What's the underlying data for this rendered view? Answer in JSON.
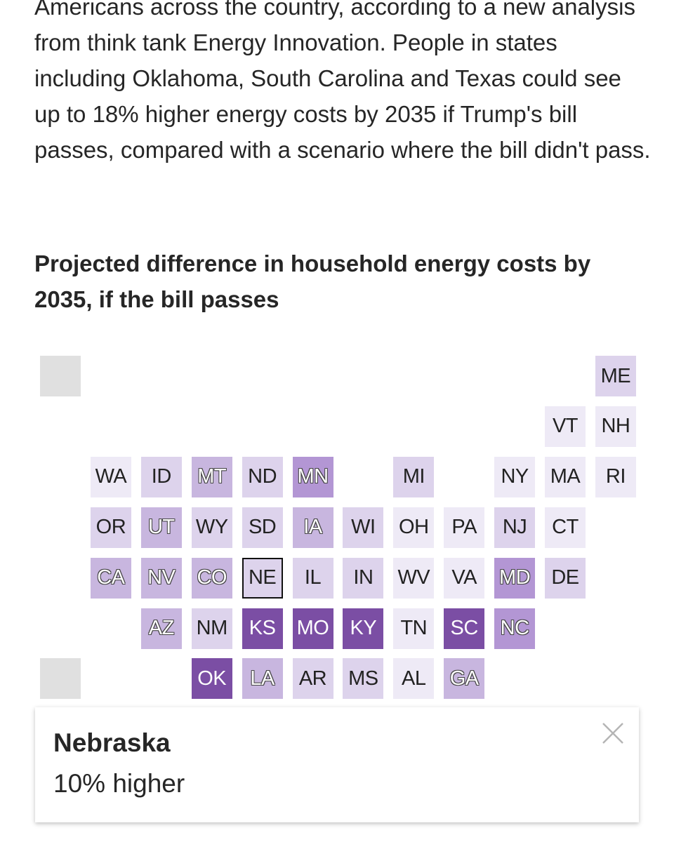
{
  "article": {
    "paragraph": "Americans across the country, according to a new analysis from think tank Energy Innovation. People in states including Oklahoma, South Carolina and Texas could see up to 18% higher energy costs by 2035 if Trump's bill passes, compared with a scenario where the bill didn't pass."
  },
  "chart_data": {
    "type": "tile-map",
    "title": "Projected difference in household energy costs by 2035, if the bill passes",
    "colors": {
      "grey": "#e0e0e0",
      "level1": "#eeeaf6",
      "level2": "#ddd3ec",
      "level3": "#c8b6df",
      "level4": "#b396d4",
      "level5": "#7b4ea4"
    },
    "tiles": [
      {
        "state": "ME",
        "col": 11,
        "row": 0,
        "level": 2
      },
      {
        "state": "VT",
        "col": 10,
        "row": 1,
        "level": 1
      },
      {
        "state": "NH",
        "col": 11,
        "row": 1,
        "level": 1
      },
      {
        "state": "WA",
        "col": 1,
        "row": 2,
        "level": 1
      },
      {
        "state": "ID",
        "col": 2,
        "row": 2,
        "level": 2
      },
      {
        "state": "MT",
        "col": 3,
        "row": 2,
        "level": 3
      },
      {
        "state": "ND",
        "col": 4,
        "row": 2,
        "level": 2
      },
      {
        "state": "MN",
        "col": 5,
        "row": 2,
        "level": 4
      },
      {
        "state": "MI",
        "col": 7,
        "row": 2,
        "level": 2
      },
      {
        "state": "NY",
        "col": 9,
        "row": 2,
        "level": 1
      },
      {
        "state": "MA",
        "col": 10,
        "row": 2,
        "level": 1
      },
      {
        "state": "RI",
        "col": 11,
        "row": 2,
        "level": 1
      },
      {
        "state": "OR",
        "col": 1,
        "row": 3,
        "level": 2
      },
      {
        "state": "UT",
        "col": 2,
        "row": 3,
        "level": 3
      },
      {
        "state": "WY",
        "col": 3,
        "row": 3,
        "level": 2
      },
      {
        "state": "SD",
        "col": 4,
        "row": 3,
        "level": 2
      },
      {
        "state": "IA",
        "col": 5,
        "row": 3,
        "level": 3
      },
      {
        "state": "WI",
        "col": 6,
        "row": 3,
        "level": 2
      },
      {
        "state": "OH",
        "col": 7,
        "row": 3,
        "level": 1
      },
      {
        "state": "PA",
        "col": 8,
        "row": 3,
        "level": 1
      },
      {
        "state": "NJ",
        "col": 9,
        "row": 3,
        "level": 2
      },
      {
        "state": "CT",
        "col": 10,
        "row": 3,
        "level": 1
      },
      {
        "state": "CA",
        "col": 1,
        "row": 4,
        "level": 3
      },
      {
        "state": "NV",
        "col": 2,
        "row": 4,
        "level": 3
      },
      {
        "state": "CO",
        "col": 3,
        "row": 4,
        "level": 3
      },
      {
        "state": "NE",
        "col": 4,
        "row": 4,
        "level": 2,
        "selected": true
      },
      {
        "state": "IL",
        "col": 5,
        "row": 4,
        "level": 2
      },
      {
        "state": "IN",
        "col": 6,
        "row": 4,
        "level": 2
      },
      {
        "state": "WV",
        "col": 7,
        "row": 4,
        "level": 1
      },
      {
        "state": "VA",
        "col": 8,
        "row": 4,
        "level": 1
      },
      {
        "state": "MD",
        "col": 9,
        "row": 4,
        "level": 4
      },
      {
        "state": "DE",
        "col": 10,
        "row": 4,
        "level": 2
      },
      {
        "state": "AZ",
        "col": 2,
        "row": 5,
        "level": 3
      },
      {
        "state": "NM",
        "col": 3,
        "row": 5,
        "level": 2
      },
      {
        "state": "KS",
        "col": 4,
        "row": 5,
        "level": 5
      },
      {
        "state": "MO",
        "col": 5,
        "row": 5,
        "level": 5
      },
      {
        "state": "KY",
        "col": 6,
        "row": 5,
        "level": 5
      },
      {
        "state": "TN",
        "col": 7,
        "row": 5,
        "level": 1
      },
      {
        "state": "SC",
        "col": 8,
        "row": 5,
        "level": 5
      },
      {
        "state": "NC",
        "col": 9,
        "row": 5,
        "level": 4
      },
      {
        "state": "OK",
        "col": 3,
        "row": 6,
        "level": 5
      },
      {
        "state": "LA",
        "col": 4,
        "row": 6,
        "level": 3
      },
      {
        "state": "AR",
        "col": 5,
        "row": 6,
        "level": 2
      },
      {
        "state": "MS",
        "col": 6,
        "row": 6,
        "level": 2
      },
      {
        "state": "AL",
        "col": 7,
        "row": 6,
        "level": 1
      },
      {
        "state": "GA",
        "col": 8,
        "row": 6,
        "level": 3
      },
      {
        "state": "",
        "col": 0,
        "row": 0,
        "level": 0
      },
      {
        "state": "",
        "col": 0,
        "row": 6,
        "level": 0
      }
    ]
  },
  "tooltip": {
    "state_name": "Nebraska",
    "value_text": "10% higher",
    "close_icon": "close-icon"
  }
}
